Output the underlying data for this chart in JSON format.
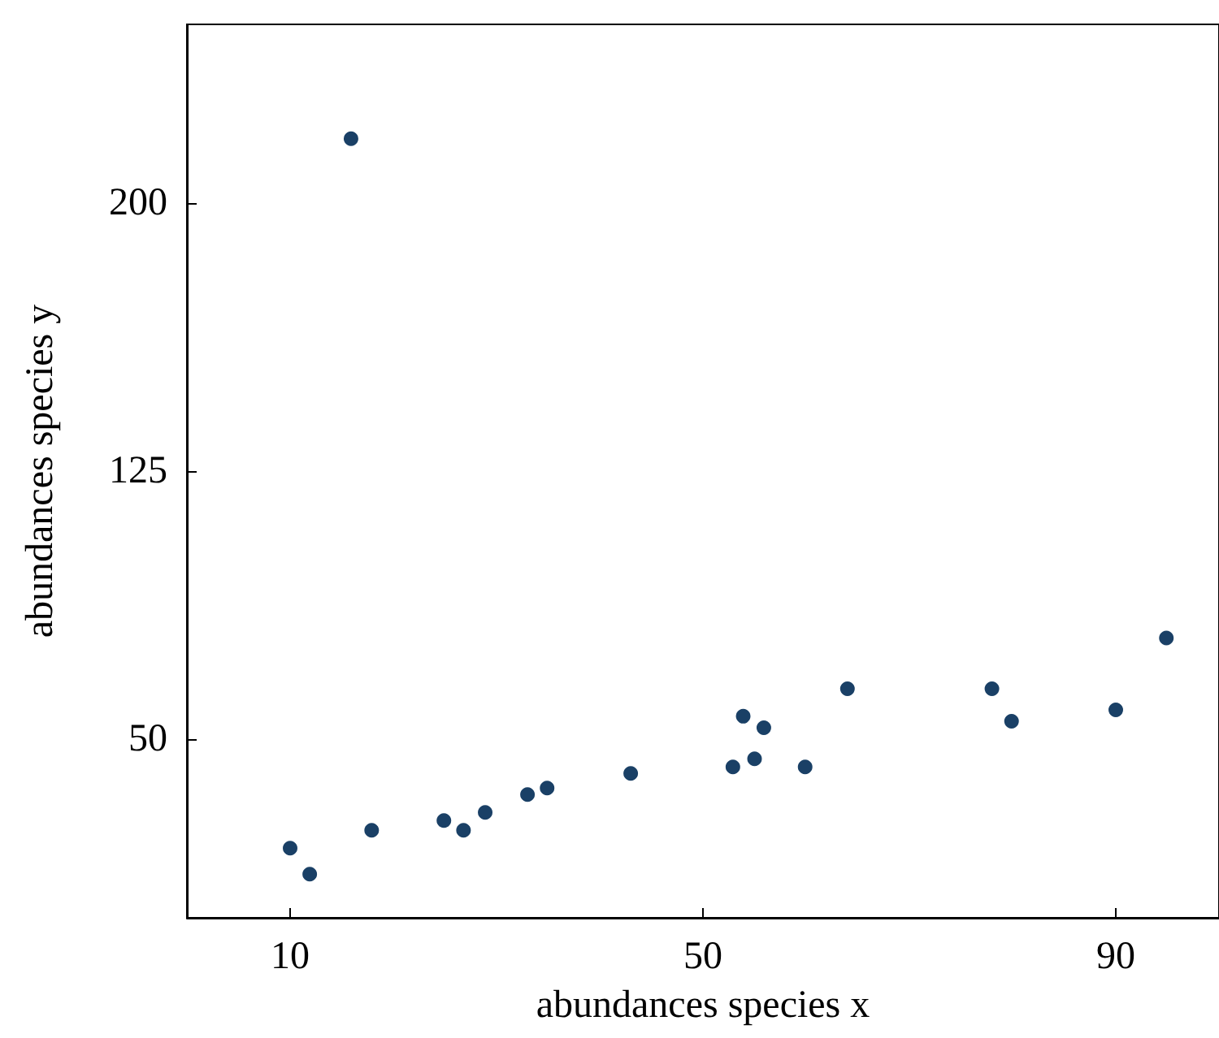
{
  "chart_data": {
    "type": "scatter",
    "xlabel": "abundances species x",
    "ylabel": "abundances species y",
    "xlim": [
      0,
      100
    ],
    "ylim": [
      0,
      250
    ],
    "xticks": [
      10,
      50,
      90
    ],
    "yticks": [
      50,
      125,
      200
    ],
    "grid": false,
    "marker": "circle",
    "series": [
      {
        "color": "#1a4066",
        "x": [
          10,
          11.9,
          15.9,
          17.9,
          24.9,
          26.8,
          28.9,
          33,
          34.9,
          43,
          52.9,
          53.9,
          55,
          55.9,
          59.9,
          64,
          78,
          79.9,
          90,
          94.9
        ],
        "values": [
          19.5,
          12.2,
          218,
          24.5,
          27.2,
          24.5,
          29.5,
          34.5,
          36.3,
          40.4,
          42.2,
          56.4,
          44.5,
          53.2,
          42.2,
          64.1,
          64.1,
          55,
          58.2,
          78.3
        ]
      }
    ]
  }
}
